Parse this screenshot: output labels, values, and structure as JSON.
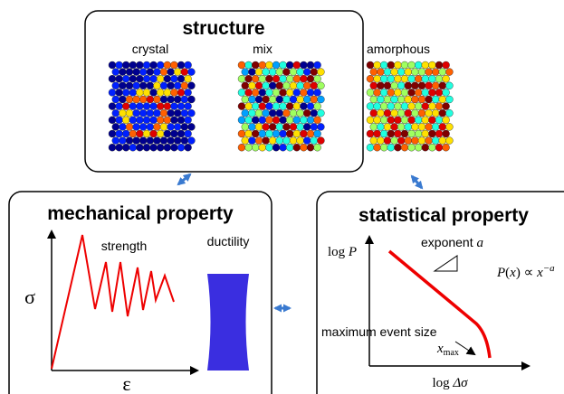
{
  "structure": {
    "title": "structure",
    "panels": [
      {
        "label": "crystal"
      },
      {
        "label": "mix"
      },
      {
        "label": "amorphous"
      }
    ]
  },
  "mechanical": {
    "title": "mechanical property",
    "strength": "strength",
    "ductility": "ductility",
    "y_axis": "σ",
    "x_axis": "ε"
  },
  "statistical": {
    "title": "statistical property",
    "exponent": {
      "word": "exponent",
      "symbol": "a"
    },
    "y_axis": {
      "prefix": "log",
      "symbol": "P"
    },
    "formula": {
      "parts": [
        "P",
        "(",
        "x",
        ") ∝ ",
        "x"
      ],
      "exponent": "−a"
    },
    "max_event": "maximum event size",
    "x_max": {
      "symbol": "x",
      "subscript": "max"
    },
    "x_axis": {
      "prefix": "log",
      "symbol": "Δσ"
    }
  }
}
